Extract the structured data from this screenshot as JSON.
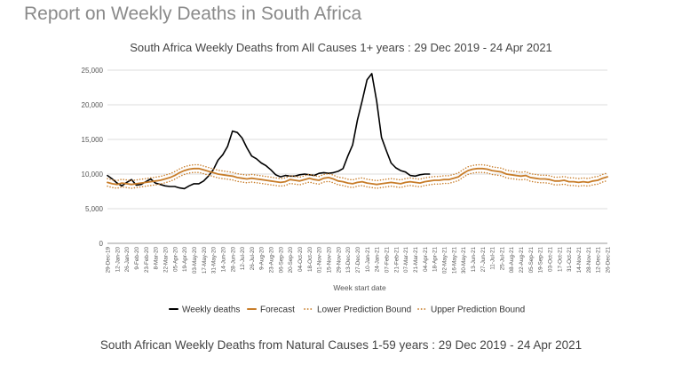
{
  "page": {
    "title": "Report on Weekly Deaths in South Africa",
    "next_chart_title": "South African Weekly Deaths from Natural Causes 1-59 years : 29 Dec 2019 - 24 Apr 2021"
  },
  "chart_data": {
    "type": "line",
    "title": "South Africa Weekly Deaths from All Causes 1+ years : 29 Dec 2019 - 24 Apr 2021",
    "xlabel": "Week start date",
    "ylabel": "",
    "ylim": [
      0,
      25000
    ],
    "yticks": [
      0,
      5000,
      10000,
      15000,
      20000,
      25000
    ],
    "ytick_labels": [
      "0",
      "5,000",
      "10,000",
      "15,000",
      "20,000",
      "25,000"
    ],
    "grid": "horizontal",
    "legend_position": "bottom",
    "x_tick_labels": [
      "29-Dec-19",
      "12-Jan-20",
      "26-Jan-20",
      "9-Feb-20",
      "23-Feb-20",
      "8-Mar-20",
      "22-Mar-20",
      "05-Apr-20",
      "19-Apr-20",
      "03-May-20",
      "17-May-20",
      "31-May-20",
      "14-Jun-20",
      "28-Jun-20",
      "12-Jul-20",
      "26-Jul-20",
      "9-Aug-20",
      "23-Aug-20",
      "06-Sep-20",
      "20-Sep-20",
      "04-Oct-20",
      "18-Oct-20",
      "01-Nov-20",
      "15-Nov-20",
      "29-Nov-20",
      "13-Dec-20",
      "27-Dec-20",
      "10-Jan-21",
      "24-Jan-21",
      "07-Feb-21",
      "21-Feb-21",
      "07-Mar-21",
      "21-Mar-21",
      "04-Apr-21",
      "18-Apr-21",
      "02-May-21",
      "16-May-21",
      "30-May-21",
      "13-Jun-21",
      "27-Jun-21",
      "11-Jul-21",
      "25-Jul-21",
      "08-Aug-21",
      "22-Aug-21",
      "05-Sep-21",
      "19-Sep-21",
      "03-Oct-21",
      "17-Oct-21",
      "31-Oct-21",
      "14-Nov-21",
      "28-Nov-21",
      "12-Dec-21",
      "26-Dec-21"
    ],
    "x_tick_step_weeks": 2,
    "x_count": 105,
    "series": [
      {
        "name": "Weekly deaths",
        "color": "#000000",
        "style": "solid",
        "values": [
          9800,
          9300,
          8700,
          8300,
          8800,
          9200,
          8400,
          8500,
          8900,
          9300,
          8700,
          8500,
          8300,
          8200,
          8200,
          8000,
          7900,
          8300,
          8600,
          8600,
          9000,
          9700,
          10600,
          12000,
          12800,
          14000,
          16200,
          16000,
          15200,
          13800,
          12600,
          12200,
          11600,
          11200,
          10600,
          9900,
          9600,
          9800,
          9700,
          9700,
          9900,
          10000,
          9900,
          9800,
          10100,
          10200,
          10100,
          10200,
          10400,
          10800,
          12600,
          14200,
          17800,
          20600,
          23600,
          24500,
          20500,
          15300,
          13400,
          11600,
          10900,
          10500,
          10300,
          9800,
          9700,
          9900,
          10000,
          10000
        ]
      },
      {
        "name": "Forecast",
        "color": "#c87d2a",
        "style": "solid",
        "values": [
          8800,
          8600,
          8500,
          8700,
          8600,
          8500,
          8600,
          8700,
          8800,
          8900,
          9000,
          9100,
          9300,
          9500,
          9800,
          10200,
          10500,
          10700,
          10800,
          10800,
          10600,
          10400,
          10200,
          10000,
          9900,
          9800,
          9700,
          9500,
          9400,
          9300,
          9400,
          9300,
          9200,
          9100,
          9000,
          8900,
          8800,
          8900,
          9200,
          9100,
          9000,
          9200,
          9400,
          9200,
          9100,
          9400,
          9500,
          9300,
          9000,
          8900,
          8700,
          8600,
          8800,
          8900,
          8700,
          8600,
          8500,
          8600,
          8700,
          8800,
          8700,
          8600,
          8800,
          8900,
          8800,
          8700,
          8900,
          9000,
          9100,
          9100,
          9200,
          9200,
          9400,
          9600,
          10100,
          10500,
          10700,
          10800,
          10800,
          10700,
          10500,
          10400,
          10300,
          10000,
          9900,
          9800,
          9700,
          9800,
          9500,
          9400,
          9300,
          9300,
          9200,
          9000,
          9000,
          9100,
          8900,
          8900,
          8800,
          8900,
          8800,
          9000,
          9100,
          9400,
          9600
        ]
      },
      {
        "name": "Lower Prediction Bound",
        "color": "#c87d2a",
        "style": "dotted",
        "offset_from_forecast": -550
      },
      {
        "name": "Upper Prediction Bound",
        "color": "#c87d2a",
        "style": "dotted",
        "offset_from_forecast": 550
      }
    ]
  }
}
